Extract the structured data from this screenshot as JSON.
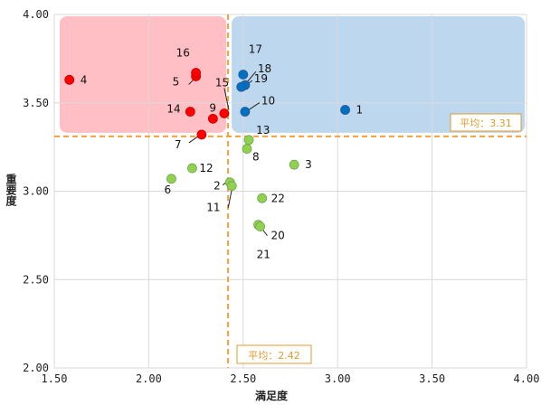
{
  "chart_data": {
    "type": "scatter",
    "xlabel": "満足度",
    "ylabel": "重要度",
    "xlim": [
      1.5,
      4.0
    ],
    "ylim": [
      2.0,
      4.0
    ],
    "x_ticks": [
      "1.50",
      "2.00",
      "2.50",
      "3.00",
      "3.50",
      "4.00"
    ],
    "y_ticks": [
      "2.00",
      "2.50",
      "3.00",
      "3.50",
      "4.00"
    ],
    "grid": true,
    "averages": {
      "x": 2.42,
      "y": 3.31,
      "x_label": "平均：2.42",
      "y_label": "平均：3.31"
    },
    "colors": {
      "red_points": "#ff0000",
      "blue_points": "#0070c0",
      "green_points": "#92d050",
      "red_quadrant": "#ffbfc4",
      "blue_quadrant": "#bdd7ee",
      "average_line": "#f4a03c",
      "grid": "#d9d9d9"
    },
    "points": [
      {
        "label": "1",
        "x": 3.04,
        "y": 3.46,
        "group": "blue"
      },
      {
        "label": "4",
        "x": 1.58,
        "y": 3.63,
        "group": "red"
      },
      {
        "label": "5",
        "x": 2.25,
        "y": 3.65,
        "group": "red"
      },
      {
        "label": "16",
        "x": 2.25,
        "y": 3.67,
        "group": "red"
      },
      {
        "label": "15",
        "x": 2.4,
        "y": 3.44,
        "group": "red"
      },
      {
        "label": "9",
        "x": 2.34,
        "y": 3.41,
        "group": "red"
      },
      {
        "label": "14",
        "x": 2.22,
        "y": 3.45,
        "group": "red"
      },
      {
        "label": "7",
        "x": 2.28,
        "y": 3.32,
        "group": "red"
      },
      {
        "label": "17",
        "x": 2.5,
        "y": 3.66,
        "group": "blue"
      },
      {
        "label": "18",
        "x": 2.51,
        "y": 3.6,
        "group": "blue"
      },
      {
        "label": "19",
        "x": 2.49,
        "y": 3.59,
        "group": "blue"
      },
      {
        "label": "10",
        "x": 2.51,
        "y": 3.45,
        "group": "blue"
      },
      {
        "label": "13",
        "x": 2.53,
        "y": 3.29,
        "group": "green"
      },
      {
        "label": "8",
        "x": 2.52,
        "y": 3.24,
        "group": "green"
      },
      {
        "label": "3",
        "x": 2.77,
        "y": 3.15,
        "group": "green"
      },
      {
        "label": "12",
        "x": 2.23,
        "y": 3.13,
        "group": "green"
      },
      {
        "label": "6",
        "x": 2.12,
        "y": 3.07,
        "group": "green"
      },
      {
        "label": "2",
        "x": 2.43,
        "y": 3.05,
        "group": "green"
      },
      {
        "label": "11",
        "x": 2.44,
        "y": 3.03,
        "group": "green"
      },
      {
        "label": "22",
        "x": 2.6,
        "y": 2.96,
        "group": "green"
      },
      {
        "label": "20",
        "x": 2.58,
        "y": 2.81,
        "group": "green"
      },
      {
        "label": "21",
        "x": 2.59,
        "y": 2.8,
        "group": "green"
      }
    ]
  }
}
